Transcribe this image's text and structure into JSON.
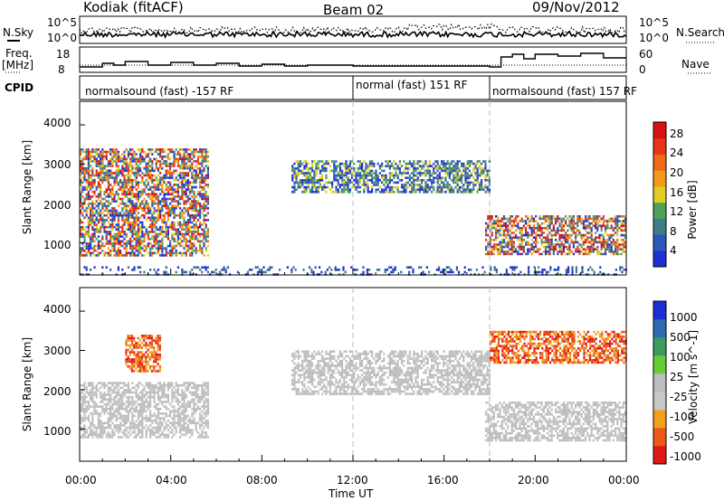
{
  "header": {
    "station": "Kodiak (fitACF)",
    "beam": "Beam 02",
    "date": "09/Nov/2012"
  },
  "top_panels": {
    "nsky_label": "N.Sky",
    "nsearch_label": "N.Search",
    "noise_left_ticks": [
      "10^5",
      "10^0"
    ],
    "noise_right_ticks": [
      "10^5",
      "10^0"
    ],
    "freq_label_1": "Freq.",
    "freq_label_2": "[MHz]",
    "freq_ticks": [
      "18",
      "8"
    ],
    "nave_label": "Nave",
    "nave_ticks": [
      "60",
      "0"
    ],
    "cpid_label": "CPID",
    "cpid_segments": [
      {
        "label": "normalsound (fast) -157 RF",
        "start_hour": 0.0
      },
      {
        "label": "normal (fast) 151 RF",
        "start_hour": 12.0
      },
      {
        "label": "normalsound (fast) 157 RF",
        "start_hour": 18.0
      }
    ]
  },
  "chart_data": [
    {
      "type": "heatmap",
      "name": "power",
      "ylabel": "Slant Range [km]",
      "xlabel": "Time UT",
      "xlim_hours": [
        0,
        24
      ],
      "ylim": [
        180,
        4600
      ],
      "y_ticks": [
        "1000",
        "2000",
        "3000",
        "4000"
      ],
      "x_ticks": [
        "00:00",
        "04:00",
        "08:00",
        "12:00",
        "16:00",
        "20:00",
        "00:00"
      ],
      "colorbar_label": "Power [dB]",
      "colorbar_ticks": [
        "4",
        "8",
        "12",
        "16",
        "20",
        "24",
        "28"
      ],
      "colorbar_colors": [
        "#1f2fd6",
        "#2a57b8",
        "#3f7c88",
        "#4ea05c",
        "#e0cc22",
        "#f29a1e",
        "#ec6a1a",
        "#e53418",
        "#d61212"
      ],
      "regions": [
        {
          "t0": 0.0,
          "t1": 5.6,
          "r0": 700,
          "r1": 3400,
          "level": "mixed-high"
        },
        {
          "t0": 9.3,
          "t1": 18.0,
          "r0": 2300,
          "r1": 3100,
          "level": "mixed-mid"
        },
        {
          "t0": 17.8,
          "t1": 24.0,
          "r0": 700,
          "r1": 1700,
          "level": "mixed-high"
        },
        {
          "t0": 0.0,
          "t1": 24.0,
          "r0": 180,
          "r1": 400,
          "level": "low"
        }
      ]
    },
    {
      "type": "heatmap",
      "name": "velocity",
      "ylabel": "Slant Range [km]",
      "xlabel": "Time UT",
      "xlim_hours": [
        0,
        24
      ],
      "ylim": [
        180,
        4600
      ],
      "y_ticks": [
        "1000",
        "2000",
        "3000",
        "4000"
      ],
      "x_ticks": [
        "00:00",
        "04:00",
        "08:00",
        "12:00",
        "16:00",
        "20:00",
        "00:00"
      ],
      "colorbar_label": "Velocity [m s^-1]",
      "colorbar_ticks": [
        "1000",
        "500",
        "100",
        "25",
        "-25",
        "-100",
        "-500",
        "-1000"
      ],
      "colorbar_colors": [
        "#1a2fcf",
        "#2d6bb0",
        "#3d9a5e",
        "#66cc33",
        "#bdbdbd",
        "#c8c8c8",
        "#f2a01e",
        "#ec5a1a",
        "#e01818"
      ],
      "regions": [
        {
          "t0": 0.0,
          "t1": 5.6,
          "r0": 800,
          "r1": 2200,
          "level": "ground"
        },
        {
          "t0": 2.0,
          "t1": 3.5,
          "r0": 2500,
          "r1": 3400,
          "level": "negative"
        },
        {
          "t0": 9.3,
          "t1": 18.0,
          "r0": 1900,
          "r1": 3000,
          "level": "ground"
        },
        {
          "t0": 17.8,
          "t1": 24.0,
          "r0": 700,
          "r1": 1700,
          "level": "ground"
        },
        {
          "t0": 18.0,
          "t1": 24.0,
          "r0": 2700,
          "r1": 3500,
          "level": "negative"
        }
      ]
    }
  ]
}
